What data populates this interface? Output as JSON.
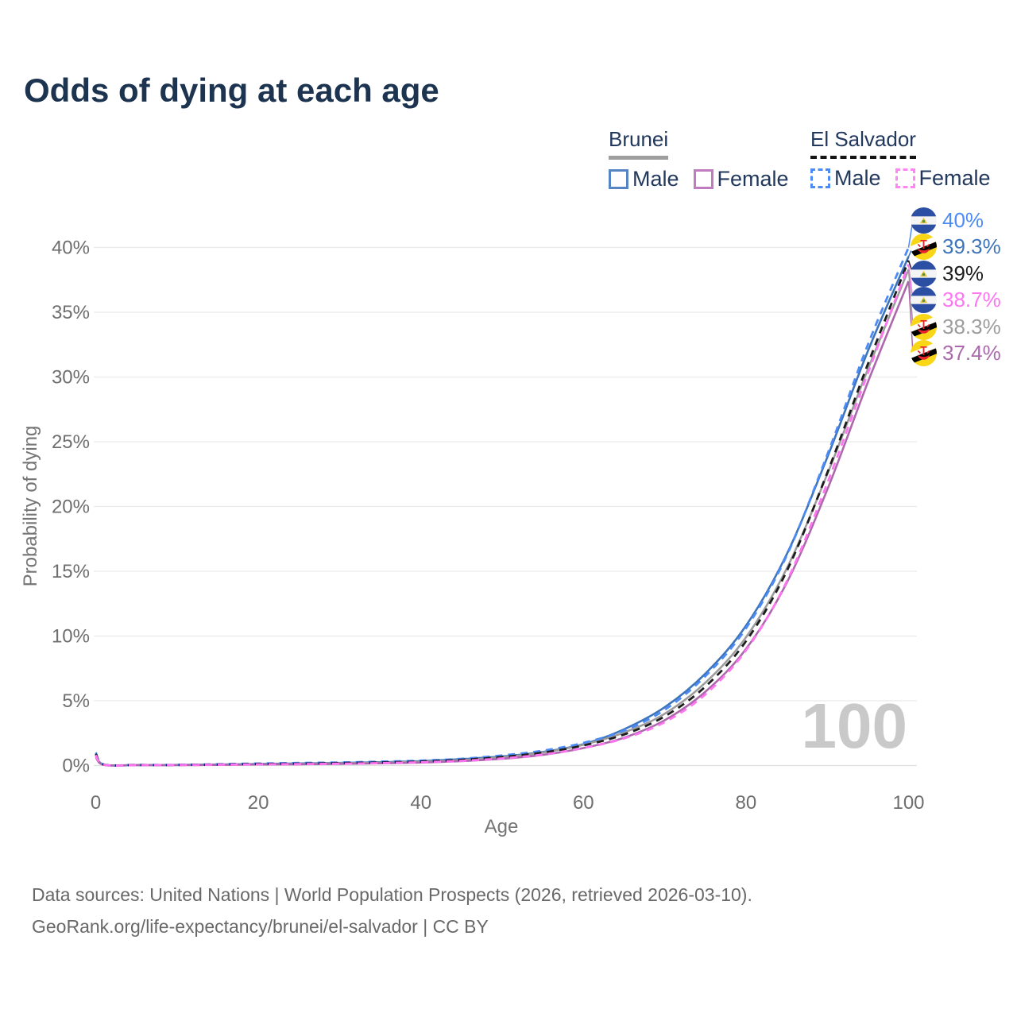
{
  "title": "Odds of dying at each age",
  "legend": {
    "groups": [
      {
        "name": "Brunei",
        "style": "solid",
        "underline_color": "#9e9e9e",
        "items": [
          {
            "label": "Male",
            "color": "#3d74ba"
          },
          {
            "label": "Female",
            "color": "#ac68ac"
          }
        ]
      },
      {
        "name": "El Salvador",
        "style": "dashed",
        "underline_color": "#141414",
        "items": [
          {
            "label": "Male",
            "color": "#4c8bf5"
          },
          {
            "label": "Female",
            "color": "#ff74f1"
          }
        ]
      }
    ]
  },
  "chart_data": {
    "type": "line",
    "title": "Odds of dying at each age",
    "xlabel": "Age",
    "ylabel": "Probability of dying",
    "xlim": [
      0,
      100
    ],
    "ylim_percent": [
      0,
      42
    ],
    "x_ticks": [
      0,
      20,
      40,
      60,
      80,
      100
    ],
    "y_ticks_percent": [
      0,
      5,
      10,
      15,
      20,
      25,
      30,
      35,
      40
    ],
    "grid": "horizontal",
    "legend_position": "top-right",
    "watermark": "100",
    "x": [
      0,
      1,
      5,
      10,
      15,
      20,
      25,
      30,
      35,
      40,
      45,
      50,
      55,
      60,
      65,
      70,
      75,
      80,
      85,
      90,
      95,
      100
    ],
    "series": [
      {
        "name": "El Salvador Male",
        "country": "El Salvador",
        "sex": "Male",
        "flag": "sv",
        "line": "dashed",
        "color": "#4c8bf5",
        "end_label": "40%",
        "end_value_percent": 40.0,
        "values_percent": [
          1.0,
          0.08,
          0.04,
          0.05,
          0.1,
          0.16,
          0.2,
          0.24,
          0.3,
          0.38,
          0.52,
          0.78,
          1.15,
          1.75,
          2.7,
          4.3,
          6.9,
          10.6,
          16.2,
          24.0,
          32.5,
          40.0
        ]
      },
      {
        "name": "Brunei Male",
        "country": "Brunei",
        "sex": "Male",
        "flag": "bn",
        "line": "solid",
        "color": "#3d74ba",
        "end_label": "39.3%",
        "end_value_percent": 39.3,
        "values_percent": [
          0.85,
          0.07,
          0.04,
          0.05,
          0.08,
          0.12,
          0.16,
          0.2,
          0.26,
          0.34,
          0.5,
          0.7,
          1.05,
          1.65,
          2.8,
          4.5,
          7.1,
          10.8,
          16.3,
          23.8,
          32.0,
          39.3
        ]
      },
      {
        "name": "El Salvador Both sexes",
        "country": "El Salvador",
        "sex": "Both",
        "flag": "sv",
        "line": "dashed",
        "color": "#1d1d1d",
        "end_label": "39%",
        "end_value_percent": 39.0,
        "values_percent": [
          0.9,
          0.07,
          0.04,
          0.04,
          0.08,
          0.12,
          0.15,
          0.19,
          0.24,
          0.31,
          0.44,
          0.66,
          1.0,
          1.55,
          2.4,
          3.8,
          6.1,
          9.6,
          15.0,
          22.6,
          31.0,
          39.0
        ]
      },
      {
        "name": "El Salvador Female",
        "country": "El Salvador",
        "sex": "Female",
        "flag": "sv",
        "line": "dashed",
        "color": "#ff74f1",
        "end_label": "38.7%",
        "end_value_percent": 38.7,
        "values_percent": [
          0.8,
          0.06,
          0.03,
          0.04,
          0.06,
          0.09,
          0.11,
          0.14,
          0.19,
          0.25,
          0.36,
          0.55,
          0.85,
          1.35,
          2.1,
          3.35,
          5.5,
          8.9,
          14.2,
          21.8,
          30.3,
          38.7
        ]
      },
      {
        "name": "Brunei Both sexes",
        "country": "Brunei",
        "sex": "Both",
        "flag": "bn",
        "line": "solid",
        "color": "#9c9c9c",
        "end_label": "38.3%",
        "end_value_percent": 38.3,
        "values_percent": [
          0.75,
          0.06,
          0.03,
          0.04,
          0.07,
          0.1,
          0.13,
          0.17,
          0.22,
          0.29,
          0.42,
          0.64,
          1.0,
          1.6,
          2.55,
          4.0,
          6.4,
          9.9,
          15.2,
          22.5,
          30.6,
          38.3
        ]
      },
      {
        "name": "Brunei Female",
        "country": "Brunei",
        "sex": "Female",
        "flag": "bn",
        "line": "solid",
        "color": "#ac68ac",
        "end_label": "37.4%",
        "end_value_percent": 37.4,
        "values_percent": [
          0.65,
          0.05,
          0.03,
          0.03,
          0.05,
          0.08,
          0.1,
          0.13,
          0.17,
          0.23,
          0.34,
          0.52,
          0.82,
          1.35,
          2.15,
          3.5,
          5.7,
          9.0,
          14.1,
          21.3,
          29.6,
          37.4
        ]
      }
    ]
  },
  "footer": {
    "line1": "Data sources: United Nations | World Population Prospects (2026, retrieved 2026-03-10).",
    "line2": "GeoRank.org/life-expectancy/brunei/el-salvador | CC BY"
  }
}
